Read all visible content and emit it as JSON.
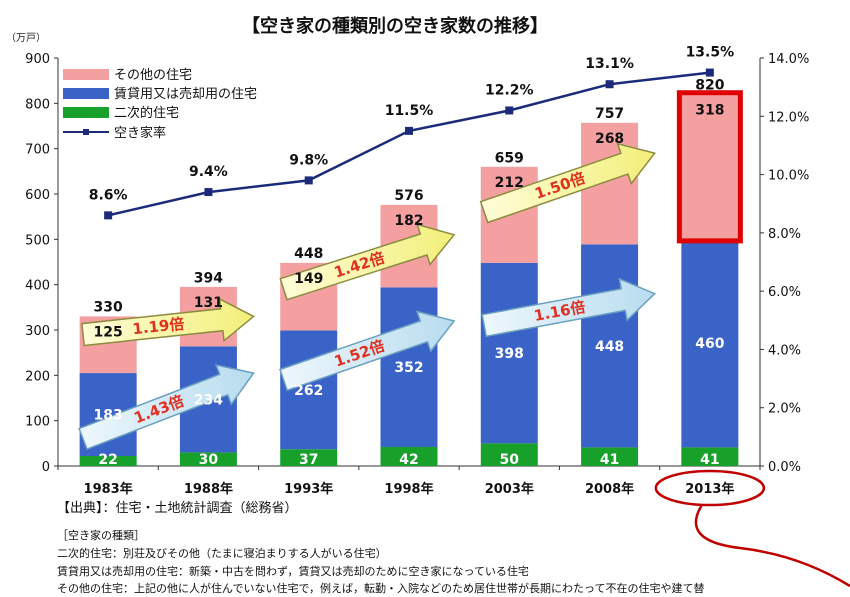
{
  "chart_data": {
    "type": "bar",
    "stacked": true,
    "title": "【空き家の種類別の空き家数の推移】",
    "left_unit": "（万戸）",
    "categories": [
      "1983年",
      "1988年",
      "1993年",
      "1998年",
      "2003年",
      "2008年",
      "2013年"
    ],
    "series": [
      {
        "name": "二次的住宅",
        "color": "#17a02a",
        "values": [
          22,
          30,
          37,
          42,
          50,
          41,
          41
        ]
      },
      {
        "name": "賃貸用又は売却用の住宅",
        "color": "#3a63c8",
        "values": [
          183,
          234,
          262,
          352,
          398,
          448,
          460
        ]
      },
      {
        "name": "その他の住宅",
        "color": "#f4a0a0",
        "values": [
          125,
          131,
          149,
          182,
          212,
          268,
          318
        ]
      }
    ],
    "totals": [
      330,
      394,
      448,
      576,
      659,
      757,
      820
    ],
    "line_series": {
      "name": "空き家率",
      "color": "#1b2b7a",
      "values": [
        8.6,
        9.4,
        9.8,
        11.5,
        12.2,
        13.1,
        13.5
      ],
      "labels": [
        "8.6%",
        "9.4%",
        "9.8%",
        "11.5%",
        "12.2%",
        "13.1%",
        "13.5%"
      ]
    },
    "ylim": [
      0,
      900
    ],
    "y_ticks": [
      0,
      100,
      200,
      300,
      400,
      500,
      600,
      700,
      800,
      900
    ],
    "y2lim": [
      0,
      14
    ],
    "y2_ticks": [
      "0.0%",
      "2.0%",
      "4.0%",
      "6.0%",
      "8.0%",
      "10.0%",
      "12.0%",
      "14.0%"
    ],
    "annotations": [
      {
        "text": "1.43倍",
        "style": "blue",
        "x0": 0.25,
        "v0": 60,
        "x1": 1.95,
        "v1": 205
      },
      {
        "text": "1.19倍",
        "style": "yellow",
        "x0": 0.25,
        "v0": 290,
        "x1": 1.95,
        "v1": 330
      },
      {
        "text": "1.52倍",
        "style": "blue",
        "x0": 2.25,
        "v0": 190,
        "x1": 3.95,
        "v1": 320
      },
      {
        "text": "1.42倍",
        "style": "yellow",
        "x0": 2.25,
        "v0": 390,
        "x1": 3.95,
        "v1": 510
      },
      {
        "text": "1.16倍",
        "style": "blue",
        "x0": 4.25,
        "v0": 310,
        "x1": 5.95,
        "v1": 380
      },
      {
        "text": "1.50倍",
        "style": "yellow",
        "x0": 4.25,
        "v0": 560,
        "x1": 5.95,
        "v1": 690
      }
    ],
    "highlight": {
      "category_index": 6,
      "series": "その他の住宅"
    }
  },
  "footer": {
    "source": "【出典】：住宅・土地統計調査（総務省）",
    "note_title": "［空き家の種類］",
    "notes": [
      "二次的住宅：別荘及びその他（たまに寝泊まりする人がいる住宅）",
      "賃貸用又は売却用の住宅：新築・中古を問わず，賃貸又は売却のために空き家になっている住宅",
      "その他の住宅：上記の他に人が住んでいない住宅で，例えば，転勤・入院などのため居住世帯が長期にわたって不在の住宅や建て替"
    ]
  }
}
